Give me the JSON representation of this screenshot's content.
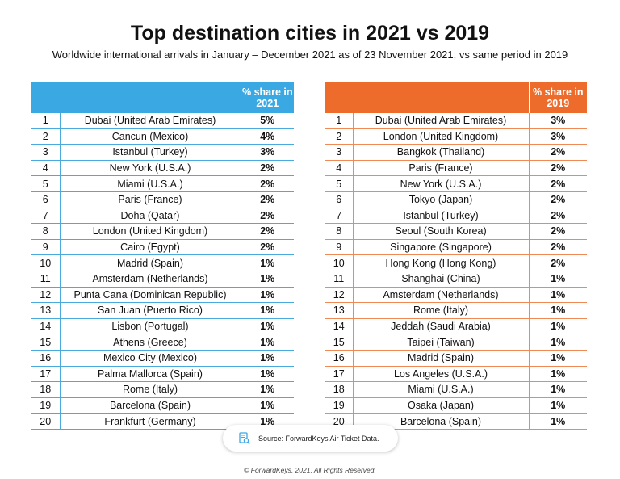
{
  "title": "Top destination cities in 2021 vs 2019",
  "subtitle": "Worldwide international arrivals in January – December 2021 as of 23 November 2021, vs same period in 2019",
  "colors": {
    "table_2021_accent": "#3aa8e2",
    "table_2019_accent": "#ee6c2b"
  },
  "chart_data": [
    {
      "type": "table",
      "columns": [
        "",
        "",
        "% share in 2021"
      ],
      "rows": [
        {
          "rank": "1",
          "city": "Dubai (United Arab Emirates)",
          "share": "5%"
        },
        {
          "rank": "2",
          "city": "Cancun (Mexico)",
          "share": "4%"
        },
        {
          "rank": "3",
          "city": "Istanbul (Turkey)",
          "share": "3%"
        },
        {
          "rank": "4",
          "city": "New York (U.S.A.)",
          "share": "2%"
        },
        {
          "rank": "5",
          "city": "Miami (U.S.A.)",
          "share": "2%"
        },
        {
          "rank": "6",
          "city": "Paris (France)",
          "share": "2%"
        },
        {
          "rank": "7",
          "city": "Doha (Qatar)",
          "share": "2%"
        },
        {
          "rank": "8",
          "city": "London (United Kingdom)",
          "share": "2%"
        },
        {
          "rank": "9",
          "city": "Cairo (Egypt)",
          "share": "2%"
        },
        {
          "rank": "10",
          "city": "Madrid (Spain)",
          "share": "1%"
        },
        {
          "rank": "11",
          "city": "Amsterdam (Netherlands)",
          "share": "1%"
        },
        {
          "rank": "12",
          "city": "Punta Cana (Dominican Republic)",
          "share": "1%"
        },
        {
          "rank": "13",
          "city": "San Juan (Puerto Rico)",
          "share": "1%"
        },
        {
          "rank": "14",
          "city": "Lisbon (Portugal)",
          "share": "1%"
        },
        {
          "rank": "15",
          "city": "Athens (Greece)",
          "share": "1%"
        },
        {
          "rank": "16",
          "city": "Mexico City (Mexico)",
          "share": "1%"
        },
        {
          "rank": "17",
          "city": "Palma Mallorca (Spain)",
          "share": "1%"
        },
        {
          "rank": "18",
          "city": "Rome (Italy)",
          "share": "1%"
        },
        {
          "rank": "19",
          "city": "Barcelona (Spain)",
          "share": "1%"
        },
        {
          "rank": "20",
          "city": "Frankfurt (Germany)",
          "share": "1%"
        }
      ]
    },
    {
      "type": "table",
      "columns": [
        "",
        "",
        "% share in 2019"
      ],
      "rows": [
        {
          "rank": "1",
          "city": "Dubai (United Arab Emirates)",
          "share": "3%"
        },
        {
          "rank": "2",
          "city": "London (United Kingdom)",
          "share": "3%"
        },
        {
          "rank": "3",
          "city": "Bangkok (Thailand)",
          "share": "2%"
        },
        {
          "rank": "4",
          "city": "Paris (France)",
          "share": "2%"
        },
        {
          "rank": "5",
          "city": "New York (U.S.A.)",
          "share": "2%"
        },
        {
          "rank": "6",
          "city": "Tokyo (Japan)",
          "share": "2%"
        },
        {
          "rank": "7",
          "city": "Istanbul (Turkey)",
          "share": "2%"
        },
        {
          "rank": "8",
          "city": "Seoul (South Korea)",
          "share": "2%"
        },
        {
          "rank": "9",
          "city": "Singapore (Singapore)",
          "share": "2%"
        },
        {
          "rank": "10",
          "city": "Hong Kong (Hong Kong)",
          "share": "2%"
        },
        {
          "rank": "11",
          "city": "Shanghai (China)",
          "share": "1%"
        },
        {
          "rank": "12",
          "city": "Amsterdam (Netherlands)",
          "share": "1%"
        },
        {
          "rank": "13",
          "city": "Rome (Italy)",
          "share": "1%"
        },
        {
          "rank": "14",
          "city": "Jeddah (Saudi Arabia)",
          "share": "1%"
        },
        {
          "rank": "15",
          "city": "Taipei (Taiwan)",
          "share": "1%"
        },
        {
          "rank": "16",
          "city": "Madrid (Spain)",
          "share": "1%"
        },
        {
          "rank": "17",
          "city": "Los Angeles (U.S.A.)",
          "share": "1%"
        },
        {
          "rank": "18",
          "city": "Miami (U.S.A.)",
          "share": "1%"
        },
        {
          "rank": "19",
          "city": "Osaka (Japan)",
          "share": "1%"
        },
        {
          "rank": "20",
          "city": "Barcelona (Spain)",
          "share": "1%"
        }
      ]
    }
  ],
  "source": {
    "icon": "document-search-icon",
    "text": "Source: ForwardKeys Air Ticket Data."
  },
  "copyright": "© ForwardKeys, 2021. All Rights Reserved."
}
